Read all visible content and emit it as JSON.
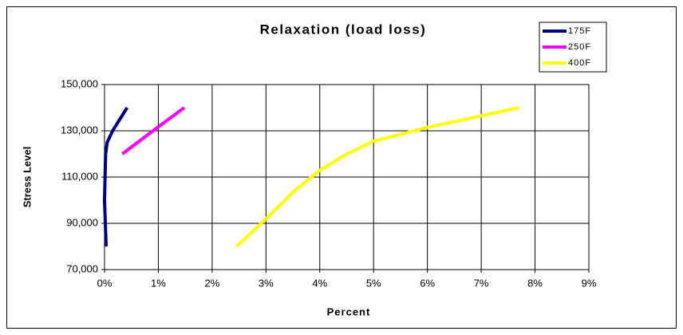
{
  "chart_data": {
    "type": "line",
    "title": "Relaxation (load loss)",
    "xlabel": "Percent",
    "ylabel": "Stress Level",
    "xlim": [
      0,
      9
    ],
    "xticks": [
      {
        "value": 0,
        "label": "0%"
      },
      {
        "value": 1,
        "label": "1%"
      },
      {
        "value": 2,
        "label": "2%"
      },
      {
        "value": 3,
        "label": "3%"
      },
      {
        "value": 4,
        "label": "4%"
      },
      {
        "value": 5,
        "label": "5%"
      },
      {
        "value": 6,
        "label": "6%"
      },
      {
        "value": 7,
        "label": "7%"
      },
      {
        "value": 8,
        "label": "8%"
      },
      {
        "value": 9,
        "label": "9%"
      }
    ],
    "ylim": [
      70000,
      150000
    ],
    "yticks": [
      {
        "value": 70000,
        "label": "70,000"
      },
      {
        "value": 90000,
        "label": "90,000"
      },
      {
        "value": 110000,
        "label": "110,000"
      },
      {
        "value": 130000,
        "label": "130,000"
      },
      {
        "value": 150000,
        "label": "150,000"
      }
    ],
    "grid": true,
    "legend": "top-right",
    "series": [
      {
        "name": "175F",
        "color": "#000080",
        "x": [
          0.03,
          0.0,
          0.02,
          0.05,
          0.15,
          0.42
        ],
        "values": [
          80000,
          100000,
          120000,
          125000,
          130000,
          140000
        ]
      },
      {
        "name": "250F",
        "color": "#ff00ff",
        "x": [
          0.33,
          0.9,
          1.48
        ],
        "values": [
          120000,
          130000,
          140000
        ]
      },
      {
        "name": "400F",
        "color": "#ffff00",
        "x": [
          2.45,
          3.0,
          3.5,
          4.0,
          4.5,
          5.0,
          6.0,
          7.0,
          7.7
        ],
        "values": [
          80000,
          92000,
          103500,
          113000,
          120000,
          125500,
          131500,
          136500,
          140000
        ]
      }
    ]
  }
}
